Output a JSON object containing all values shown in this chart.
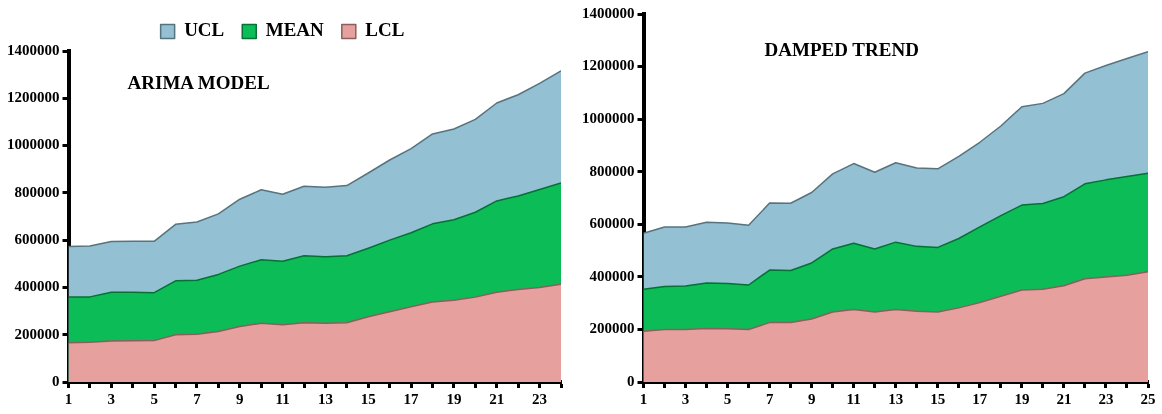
{
  "chart_data": [
    {
      "type": "area",
      "title": "ARIMA MODEL",
      "legend": "top",
      "x": [
        1,
        2,
        3,
        4,
        5,
        6,
        7,
        8,
        9,
        10,
        11,
        12,
        13,
        14,
        15,
        16,
        17,
        18,
        19,
        20,
        21,
        22,
        23,
        24
      ],
      "xlim": [
        1,
        24
      ],
      "xticks": [
        1,
        {
          "value": 2,
          "label": null
        },
        3,
        {
          "value": 4,
          "label": null
        },
        5,
        {
          "value": 6,
          "label": null
        },
        7,
        {
          "value": 8,
          "label": null
        },
        9,
        {
          "value": 10,
          "label": null
        },
        11,
        {
          "value": 12,
          "label": null
        },
        13,
        {
          "value": 14,
          "label": null
        },
        15,
        {
          "value": 16,
          "label": null
        },
        17,
        {
          "value": 18,
          "label": null
        },
        19,
        {
          "value": 20,
          "label": null
        },
        21,
        {
          "value": 22,
          "label": null
        },
        23,
        {
          "value": 24,
          "label": null
        }
      ],
      "ylim": [
        0,
        1400000
      ],
      "yticks": [
        0,
        200000,
        400000,
        600000,
        800000,
        1000000,
        1200000,
        1400000
      ],
      "series": [
        {
          "name": "UCL",
          "color": "#93c0d2",
          "values": [
            573000,
            575000,
            594000,
            595000,
            595000,
            667000,
            677000,
            711000,
            773000,
            813000,
            794000,
            828000,
            824000,
            831000,
            884000,
            939000,
            987000,
            1049000,
            1070000,
            1111000,
            1180000,
            1215000,
            1263000,
            1316000
          ]
        },
        {
          "name": "MEAN",
          "color": "#0cbc57",
          "values": [
            359000,
            360000,
            380000,
            380000,
            378000,
            428000,
            430000,
            455000,
            490000,
            517000,
            511000,
            534000,
            530000,
            534000,
            566000,
            600000,
            631000,
            669000,
            686000,
            718000,
            766000,
            787000,
            814000,
            842000
          ]
        },
        {
          "name": "LCL",
          "color": "#e6a09e",
          "values": [
            166000,
            168000,
            173000,
            174000,
            175000,
            200000,
            202000,
            214000,
            235000,
            248000,
            242000,
            251000,
            248000,
            251000,
            276000,
            297000,
            318000,
            338000,
            346000,
            359000,
            380000,
            391000,
            400000,
            414000
          ]
        }
      ]
    },
    {
      "type": "area",
      "title": "DAMPED TREND",
      "x": [
        1,
        2,
        3,
        4,
        5,
        6,
        7,
        8,
        9,
        10,
        11,
        12,
        13,
        14,
        15,
        16,
        17,
        18,
        19,
        20,
        21,
        22,
        23,
        24,
        25
      ],
      "xlim": [
        1,
        25
      ],
      "xticks": [
        1,
        {
          "value": 2,
          "label": null
        },
        3,
        {
          "value": 4,
          "label": null
        },
        5,
        {
          "value": 6,
          "label": null
        },
        7,
        {
          "value": 8,
          "label": null
        },
        9,
        {
          "value": 10,
          "label": null
        },
        11,
        {
          "value": 12,
          "label": null
        },
        13,
        {
          "value": 14,
          "label": null
        },
        15,
        {
          "value": 16,
          "label": null
        },
        17,
        {
          "value": 18,
          "label": null
        },
        19,
        {
          "value": 20,
          "label": null
        },
        21,
        {
          "value": 22,
          "label": null
        },
        23,
        {
          "value": 24,
          "label": null
        },
        25
      ],
      "ylim": [
        0,
        1400000
      ],
      "yticks": [
        0,
        200000,
        400000,
        600000,
        800000,
        1000000,
        1200000,
        1400000
      ],
      "series": [
        {
          "color": "#93c0d2",
          "values": [
            566000,
            590000,
            590000,
            608000,
            605000,
            596000,
            681000,
            680000,
            721000,
            792000,
            831000,
            798000,
            834000,
            814000,
            811000,
            858000,
            912000,
            974000,
            1047000,
            1060000,
            1097000,
            1175000,
            1204000,
            1231000,
            1257000
          ]
        },
        {
          "color": "#0cbc57",
          "values": [
            353000,
            363000,
            365000,
            377000,
            375000,
            369000,
            426000,
            424000,
            453000,
            506000,
            528000,
            506000,
            532000,
            516000,
            512000,
            546000,
            590000,
            633000,
            673000,
            679000,
            705000,
            754000,
            769000,
            782000,
            794000
          ]
        },
        {
          "color": "#e6a09e",
          "values": [
            193000,
            200000,
            200000,
            204000,
            203000,
            200000,
            226000,
            226000,
            240000,
            266000,
            276000,
            266000,
            276000,
            269000,
            266000,
            282000,
            302000,
            326000,
            350000,
            353000,
            366000,
            393000,
            399000,
            406000,
            419000
          ]
        }
      ]
    }
  ]
}
